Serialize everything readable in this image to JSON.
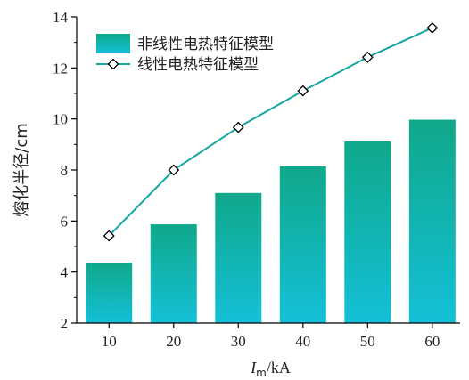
{
  "chart_data": {
    "type": "bar",
    "categories": [
      "10",
      "20",
      "30",
      "40",
      "50",
      "60"
    ],
    "x": [
      10,
      20,
      30,
      40,
      50,
      60
    ],
    "series": [
      {
        "name": "非线性电热特征模型",
        "kind": "bar",
        "values": [
          4.37,
          5.87,
          7.1,
          8.15,
          9.12,
          9.97
        ]
      },
      {
        "name": "线性电热特征模型",
        "kind": "line",
        "marker": "diamond",
        "values": [
          5.42,
          8.0,
          9.67,
          11.1,
          12.42,
          13.57
        ]
      }
    ],
    "xlabel_main": "I",
    "xlabel_sub": "m",
    "xlabel_unit": "/kA",
    "ylabel": "熔化半径/cm",
    "ylim": [
      2,
      14
    ],
    "yticks": [
      2,
      4,
      6,
      8,
      10,
      12,
      14
    ],
    "grid": false,
    "legend_position": "top-left",
    "colors": {
      "bar_top": "#10a88a",
      "bar_bottom": "#14c0d8",
      "line": "#17a5a2",
      "marker_fill": "#ffffff",
      "marker_stroke": "#000000"
    }
  }
}
